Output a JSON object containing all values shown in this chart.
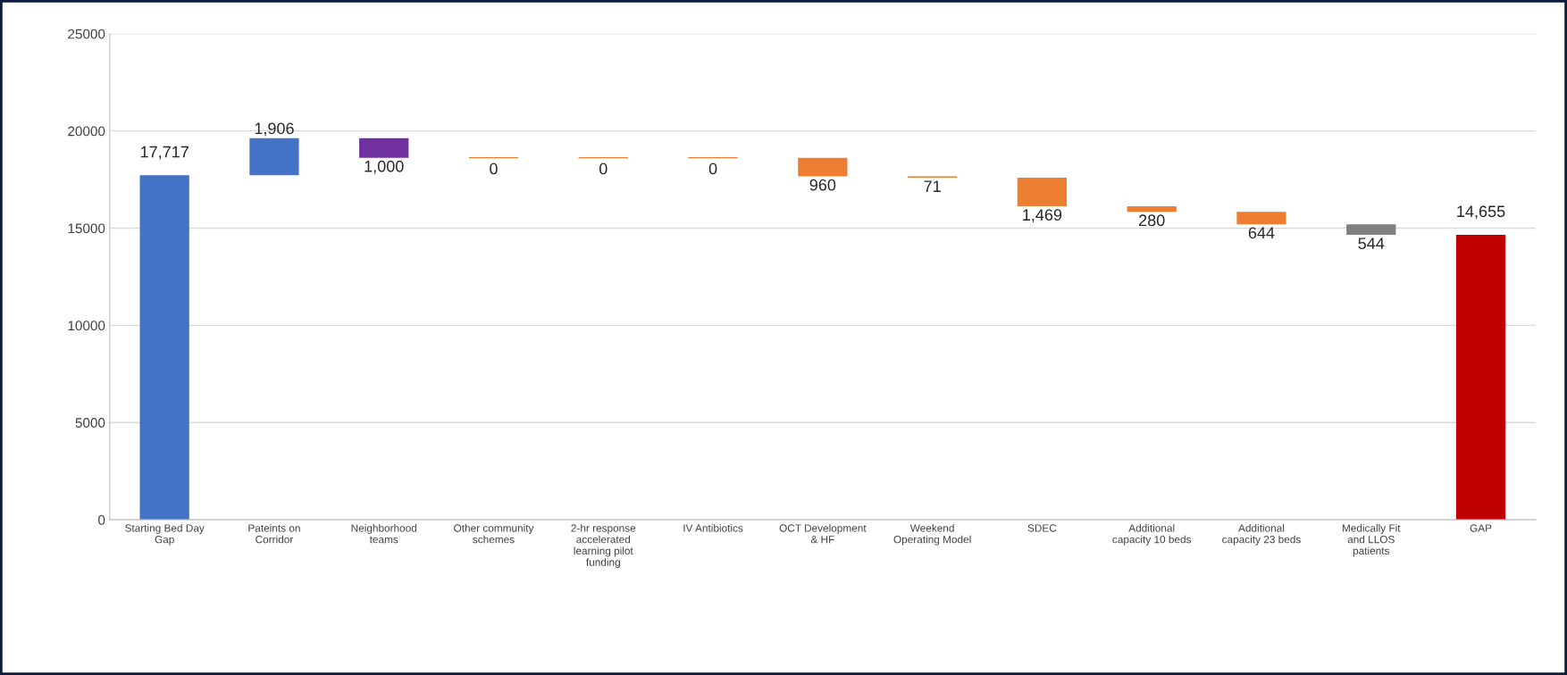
{
  "chart_data": {
    "type": "bar",
    "categories": [
      "Starting Bed Day Gap",
      "Pateints on Corridor",
      "Neighborhood teams",
      "Other community schemes",
      "2-hr response accelerated learning pilot funding",
      "IV Antibiotics",
      "OCT Development & HF",
      "Weekend Operating Model",
      "SDEC",
      "Additional capacity 10 beds",
      "Additional capacity 23 beds",
      "Medically Fit and LLOS patients",
      "GAP"
    ],
    "base": [
      0,
      17717,
      18623,
      18623,
      18623,
      18623,
      17663,
      17592,
      16123,
      15843,
      15199,
      14655,
      0
    ],
    "values": [
      17717,
      1906,
      1000,
      0,
      0,
      0,
      960,
      71,
      1469,
      280,
      644,
      544,
      14655
    ],
    "value_labels": [
      "17,717",
      "1,906",
      "1,000",
      "0",
      "0",
      "0",
      "960",
      "71",
      "1,469",
      "280",
      "644",
      "544",
      "14,655"
    ],
    "colors": [
      "#4472c4",
      "#4472c4",
      "#7030a0",
      "#ed7d31",
      "#ed7d31",
      "#ed7d31",
      "#ed7d31",
      "#ed7d31",
      "#ed7d31",
      "#ed7d31",
      "#ed7d31",
      "#7f7f7f",
      "#c00000"
    ],
    "ylim": [
      0,
      25000
    ],
    "yticks": [
      0,
      5000,
      10000,
      15000,
      20000,
      25000
    ],
    "grid": "y",
    "legend": false
  }
}
